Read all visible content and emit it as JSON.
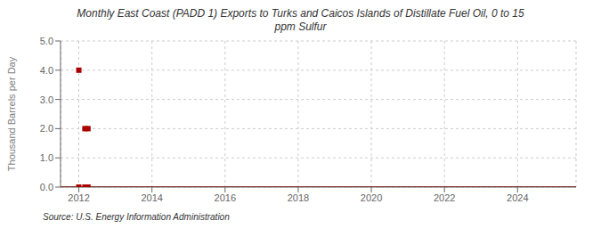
{
  "chart_data": {
    "type": "scatter",
    "title": "Monthly East Coast (PADD 1) Exports to Turks and Caicos Islands of Distillate Fuel Oil, 0 to 15\nppm Sulfur",
    "ylabel": "Thousand Barrels per Day",
    "annotations": [
      "Source: U.S. Energy Information Administration"
    ],
    "series": [
      {
        "type": "line",
        "color": "#aa0000",
        "x": [
          2011.5,
          2025.6
        ],
        "values": [
          0.0,
          0.0
        ]
      },
      {
        "type": "scatter",
        "color": "#aa0000",
        "marker": "square",
        "x": [
          2012.0,
          2012.167,
          2012.25,
          2012.0,
          2012.167,
          2012.25
        ],
        "values": [
          4.0,
          2.0,
          2.0,
          0.0,
          0.0,
          0.0
        ]
      }
    ],
    "xlim": [
      2011.5,
      2025.6
    ],
    "xticks": [
      2012,
      2014,
      2016,
      2018,
      2020,
      2022,
      2024
    ],
    "ylim": [
      0.0,
      5.0
    ],
    "yticks": [
      {
        "value": 0.0,
        "label": "0.0"
      },
      {
        "value": 1.0,
        "label": "1.0"
      },
      {
        "value": 2.0,
        "label": "2.0"
      },
      {
        "value": 3.0,
        "label": "3.0"
      },
      {
        "value": 4.0,
        "label": "4.0"
      },
      {
        "value": 5.0,
        "label": "5.0"
      }
    ],
    "grid": true
  }
}
